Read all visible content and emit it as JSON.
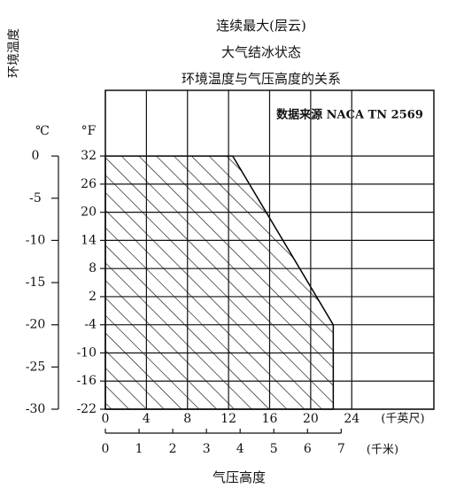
{
  "chart_data": {
    "type": "area",
    "title": [
      "连续最大(层云)",
      "大气结冰状态",
      "环境温度与气压高度的关系"
    ],
    "annotation": "数据来源 NACA TN 2569",
    "y_label": "环境温度",
    "x_label": "气压高度",
    "y_unit": "°F",
    "y2_unit": "℃",
    "x_unit": "(千英尺)",
    "x2_unit": "(千米)",
    "x": [
      0,
      12.4,
      22.2,
      22.2
    ],
    "series": [
      {
        "values": [
          32,
          32,
          -4,
          -22
        ],
        "color": "#000000"
      }
    ],
    "xlim": [
      0,
      32
    ],
    "xticks": [
      0,
      4,
      8,
      12,
      16,
      20,
      24
    ],
    "x2lim": [
      0,
      9.75
    ],
    "x2ticks": [
      0,
      1,
      2,
      3,
      4,
      5,
      6,
      7
    ],
    "ylim": [
      -22,
      46
    ],
    "yticks": [
      32,
      26,
      20,
      14,
      8,
      2,
      -4,
      -10,
      -16,
      -22
    ],
    "y2lim": [
      -30,
      7.78
    ],
    "y2ticks": [
      0,
      -5,
      -10,
      -15,
      -20,
      -25,
      -30
    ],
    "grid": true
  }
}
